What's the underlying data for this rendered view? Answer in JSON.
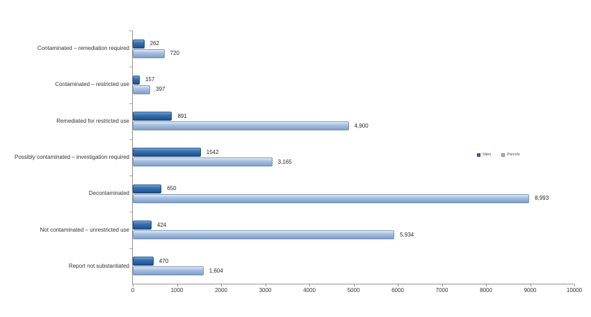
{
  "chart_data": {
    "type": "bar",
    "orientation": "horizontal",
    "title": "",
    "categories": [
      "Contaminated – remediation required",
      "Contaminated – restricted use",
      "Remediated for restricted use",
      "Possibly contaminated – investigation required",
      "Decontaminated",
      "Not contaminated – unrestricted use",
      "Report not substantiated"
    ],
    "series": [
      {
        "name": "Sites",
        "color": "#2F66A8",
        "values": [
          262,
          157,
          891,
          1542,
          650,
          424,
          470
        ],
        "value_labels": [
          "262",
          "157",
          "891",
          "1542",
          "650",
          "424",
          "470"
        ]
      },
      {
        "name": "Parcels",
        "color": "#9DB9DC",
        "values": [
          720,
          397,
          4900,
          3165,
          8993,
          5934,
          1604
        ],
        "value_labels": [
          "720",
          "397",
          "4,900",
          "3,165",
          "8,993",
          "5,934",
          "1,604"
        ]
      }
    ],
    "xlim": [
      0,
      10000
    ],
    "x_tick_labels": [
      "0",
      "1000",
      "2000",
      "3000",
      "4000",
      "5000",
      "6000",
      "7000",
      "8000",
      "9000",
      "10000"
    ],
    "grid": false,
    "legend_position": "right-middle",
    "background": "#ffffff",
    "axis_color": "#919191",
    "label_color": "#333333"
  }
}
